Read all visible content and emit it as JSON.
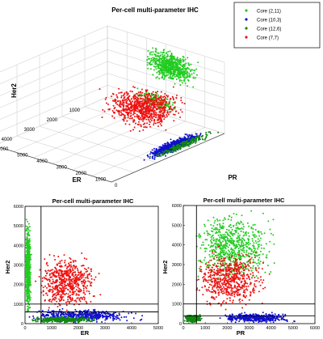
{
  "chart_data": [
    {
      "type": "scatter",
      "subtype": "3d-scatter",
      "title": "Per-cell multi-parameter IHC",
      "xlabel": "ER",
      "ylabel": "PR",
      "zlabel": "Her2",
      "xlim": [
        0,
        5000
      ],
      "ylim": [
        0,
        6000
      ],
      "zlim": [
        0,
        6000
      ],
      "xticks": [
        "1000",
        "2000",
        "3000",
        "4000",
        "5000"
      ],
      "yticks": [
        "0",
        "1000",
        "2000",
        "3000",
        "4000",
        "5000",
        "6000"
      ],
      "zticks": [
        "0",
        "1000",
        "2000",
        "3000",
        "4000",
        "5000",
        "6000"
      ],
      "grid": true,
      "legend_position": "top-right",
      "series": [
        {
          "name": "Core (2,11)",
          "color": "#22cc22",
          "marker": "dot",
          "clusters": [
            {
              "er": [
                0,
                400
              ],
              "pr": [
                1000,
                4000
              ],
              "her2": [
                3000,
                6000
              ],
              "points": 700
            },
            {
              "er": [
                0,
                300
              ],
              "pr": [
                2000,
                4500
              ],
              "her2": [
                400,
                2000
              ],
              "points": 200
            }
          ]
        },
        {
          "name": "Core (10,3)",
          "color": "#1111cc",
          "marker": "dot",
          "clusters": [
            {
              "er": [
                700,
                3300
              ],
              "pr": [
                0,
                600
              ],
              "her2": [
                0,
                900
              ],
              "points": 900
            }
          ]
        },
        {
          "name": "Core (12,6)",
          "color": "#118811",
          "marker": "dot",
          "clusters": [
            {
              "er": [
                0,
                3200
              ],
              "pr": [
                0,
                500
              ],
              "her2": [
                0,
                500
              ],
              "points": 200
            }
          ]
        },
        {
          "name": "Core (7,7)",
          "color": "#ee1111",
          "marker": "dot",
          "clusters": [
            {
              "er": [
                200,
                2600
              ],
              "pr": [
                600,
                4500
              ],
              "her2": [
                600,
                3500
              ],
              "points": 800
            }
          ]
        }
      ]
    },
    {
      "type": "scatter",
      "title": "Per-cell multi-parameter IHC",
      "xlabel": "ER",
      "ylabel": "Her2",
      "xlim": [
        0,
        5000
      ],
      "ylim": [
        0,
        6000
      ],
      "xticks": [
        "0",
        "1000",
        "2000",
        "3000",
        "4000",
        "5000"
      ],
      "yticks": [
        "0",
        "1000",
        "2000",
        "3000",
        "4000",
        "5000",
        "6000"
      ],
      "gates": {
        "x": 600,
        "y": [
          600,
          1000
        ]
      },
      "series": [
        {
          "name": "Core (2,11)",
          "color": "#22cc22",
          "clusters": [
            {
              "x": [
                0,
                250
              ],
              "y": [
                100,
                5600
              ],
              "points": 600
            }
          ]
        },
        {
          "name": "Core (10,3)",
          "color": "#1111cc",
          "clusters": [
            {
              "x": [
                0,
                4600
              ],
              "y": [
                0,
                800
              ],
              "points": 500
            }
          ]
        },
        {
          "name": "Core (12,6)",
          "color": "#118811",
          "clusters": [
            {
              "x": [
                0,
                3000
              ],
              "y": [
                0,
                400
              ],
              "points": 300
            }
          ]
        },
        {
          "name": "Core (7,7)",
          "color": "#ee1111",
          "clusters": [
            {
              "x": [
                300,
                3000
              ],
              "y": [
                500,
                3800
              ],
              "points": 600
            }
          ]
        }
      ]
    },
    {
      "type": "scatter",
      "title": "Per-cell multi-parameter IHC",
      "xlabel": "PR",
      "ylabel": "Her2",
      "xlim": [
        0,
        6000
      ],
      "ylim": [
        0,
        6000
      ],
      "xticks": [
        "0",
        "1000",
        "2000",
        "3000",
        "4000",
        "5000",
        "6000"
      ],
      "yticks": [
        "0",
        "1000",
        "2000",
        "3000",
        "4000",
        "5000",
        "6000"
      ],
      "gates": {
        "x": 600,
        "y": [
          400,
          1000
        ]
      },
      "series": [
        {
          "name": "Core (2,11)",
          "color": "#22cc22",
          "clusters": [
            {
              "x": [
                300,
                4500
              ],
              "y": [
                1800,
                6000
              ],
              "points": 700
            }
          ]
        },
        {
          "name": "Core (10,3)",
          "color": "#1111cc",
          "clusters": [
            {
              "x": [
                1500,
                5300
              ],
              "y": [
                0,
                600
              ],
              "points": 400
            }
          ]
        },
        {
          "name": "Core (12,6)",
          "color": "#118811",
          "clusters": [
            {
              "x": [
                0,
                900
              ],
              "y": [
                0,
                500
              ],
              "points": 250
            }
          ]
        },
        {
          "name": "Core (7,7)",
          "color": "#ee1111",
          "clusters": [
            {
              "x": [
                400,
                4200
              ],
              "y": [
                500,
                4000
              ],
              "points": 600
            }
          ]
        }
      ]
    }
  ]
}
